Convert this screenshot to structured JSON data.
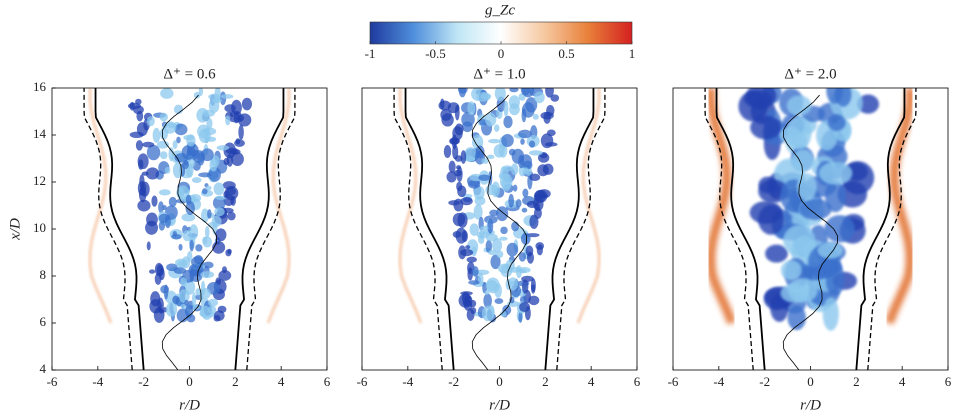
{
  "colorbar": {
    "label": "g_Zc",
    "lim": [
      -1,
      1
    ],
    "ticks": [
      -1,
      -0.5,
      0,
      0.5,
      1
    ],
    "colors": [
      "#1f3a9e",
      "#4f8fdc",
      "#bfe6f5",
      "#ffffff",
      "#f6c8a0",
      "#e8803a",
      "#d42020"
    ]
  },
  "chart_data": [
    {
      "type": "contour",
      "title": "Δ⁺ = 0.6",
      "x_label": "r/D",
      "y_label": "x/D",
      "xlim": [
        -6,
        6
      ],
      "ylim": [
        4,
        16
      ],
      "xticks": [
        -6,
        -4,
        -2,
        0,
        2,
        4,
        6
      ],
      "yticks": [
        4,
        6,
        8,
        10,
        12,
        14,
        16
      ]
    },
    {
      "type": "contour",
      "title": "Δ⁺ = 1.0",
      "x_label": "r/D",
      "xlim": [
        -6,
        6
      ],
      "ylim": [
        4,
        16
      ],
      "xticks": [
        -6,
        -4,
        -2,
        0,
        2,
        4,
        6
      ]
    },
    {
      "type": "contour",
      "title": "Δ⁺ = 2.0",
      "x_label": "r/D",
      "xlim": [
        -6,
        6
      ],
      "ylim": [
        4,
        16
      ],
      "xticks": [
        -6,
        -4,
        -2,
        0,
        2,
        4,
        6
      ]
    }
  ]
}
